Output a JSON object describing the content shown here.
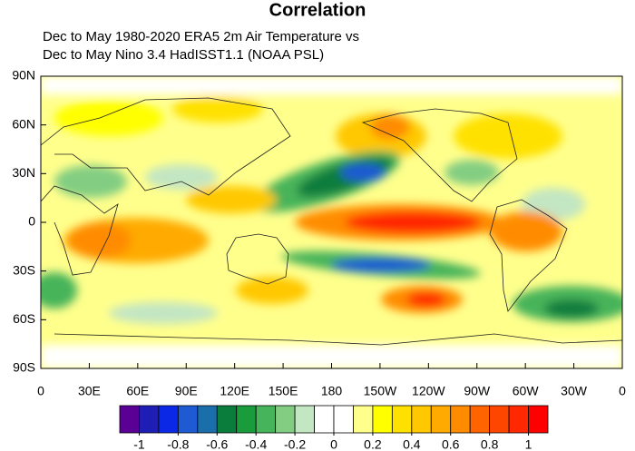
{
  "title": "Correlation",
  "subtitle": [
    "Dec to May 1980-2020 ERA5 2m Air Temperature vs",
    "Dec to May Nino 3.4 HadISST1.1 (NOAA PSL)"
  ],
  "map": {
    "x_labels": [
      "0",
      "30E",
      "60E",
      "90E",
      "120E",
      "150E",
      "180",
      "150W",
      "120W",
      "90W",
      "60W",
      "30W",
      "0"
    ],
    "y_labels": [
      "90N",
      "60N",
      "30N",
      "0",
      "30S",
      "60S",
      "90S"
    ]
  },
  "colorbar": {
    "colors": [
      "#5a0095",
      "#1e1eb4",
      "#0a28e6",
      "#1e5ad2",
      "#1a6eaa",
      "#0a7d3c",
      "#1a9c3c",
      "#46b45a",
      "#82cd82",
      "#c3e6c3",
      "#ffffff",
      "#ffffff",
      "#ffff8c",
      "#ffff00",
      "#ffe100",
      "#ffc800",
      "#ffaa00",
      "#ff8c00",
      "#ff6400",
      "#ff4600",
      "#ff2800",
      "#ff0000"
    ],
    "lim": [
      -1.1,
      1.1
    ],
    "ticks": [
      -1,
      -0.8,
      -0.6,
      -0.4,
      -0.2,
      0,
      0.2,
      0.4,
      0.6,
      0.8,
      1
    ]
  }
}
